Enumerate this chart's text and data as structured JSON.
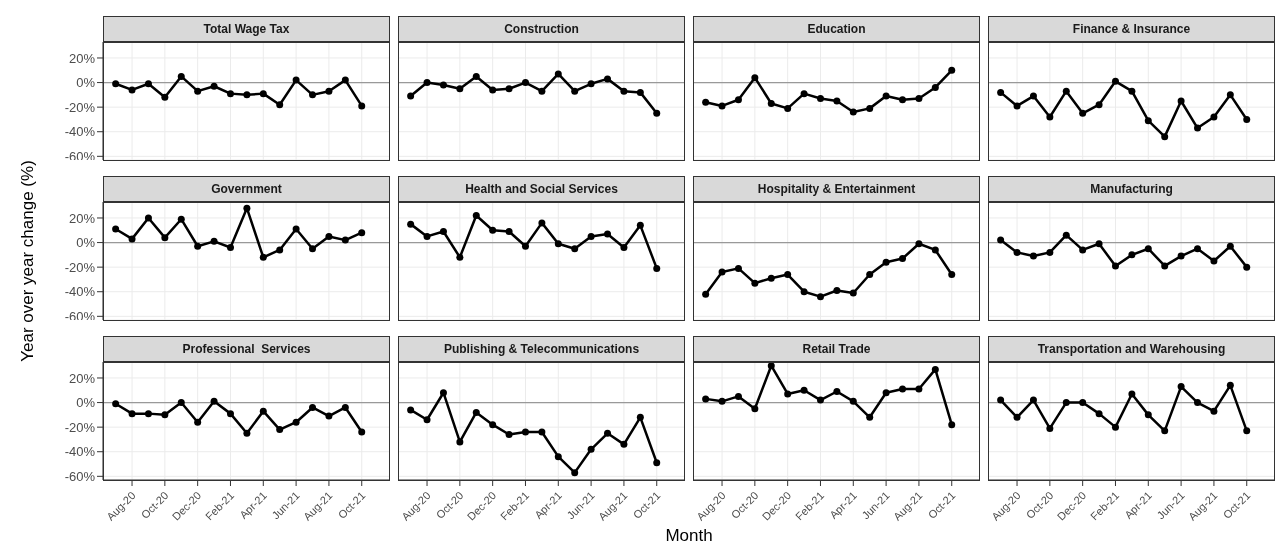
{
  "chart_data": [
    {
      "type": "line",
      "title": "Total Wage Tax",
      "x": [
        "2020-07",
        "2020-08",
        "2020-09",
        "2020-10",
        "2020-11",
        "2020-12",
        "2021-01",
        "2021-02",
        "2021-03",
        "2021-04",
        "2021-05",
        "2021-06",
        "2021-07",
        "2021-08",
        "2021-09",
        "2021-10"
      ],
      "series": [
        {
          "color": "#000000",
          "values": [
            -1,
            -6,
            -1,
            -12,
            5,
            -7,
            -3,
            -9,
            -10,
            -9,
            -18,
            2,
            -10,
            -7,
            2,
            -19
          ]
        }
      ],
      "xlim": [
        "2020-06-08",
        "2021-11-23"
      ],
      "xticks": [
        {
          "value": "2020-08",
          "label": null
        },
        {
          "value": "2020-10",
          "label": null
        },
        {
          "value": "2020-12",
          "label": null
        },
        {
          "value": "2021-02",
          "label": null
        },
        {
          "value": "2021-04",
          "label": null
        },
        {
          "value": "2021-06",
          "label": null
        },
        {
          "value": "2021-08",
          "label": null
        },
        {
          "value": "2021-10",
          "label": null
        }
      ],
      "ylim": [
        -63,
        33
      ],
      "yticks": [
        {
          "value": -60,
          "label": "-60%"
        },
        {
          "value": -40,
          "label": "-40%"
        },
        {
          "value": -20,
          "label": "-20%"
        },
        {
          "value": 0,
          "label": "0%"
        },
        {
          "value": 20,
          "label": "20%"
        }
      ],
      "ref_lines": [
        {
          "axis": "y",
          "value": 0,
          "color": "#999999"
        }
      ],
      "grid": true,
      "marker": "circle",
      "line_style": "solid",
      "tick_labels": "y"
    },
    {
      "type": "line",
      "title": "Construction",
      "x": [
        "2020-07",
        "2020-08",
        "2020-09",
        "2020-10",
        "2020-11",
        "2020-12",
        "2021-01",
        "2021-02",
        "2021-03",
        "2021-04",
        "2021-05",
        "2021-06",
        "2021-07",
        "2021-08",
        "2021-09",
        "2021-10"
      ],
      "series": [
        {
          "color": "#000000",
          "values": [
            -11,
            0,
            -2,
            -5,
            5,
            -6,
            -5,
            0,
            -7,
            7,
            -7,
            -1,
            3,
            -7,
            -8,
            -25
          ]
        }
      ],
      "xlim": [
        "2020-06-08",
        "2021-11-23"
      ],
      "xticks": [
        {
          "value": "2020-08",
          "label": null
        },
        {
          "value": "2020-10",
          "label": null
        },
        {
          "value": "2020-12",
          "label": null
        },
        {
          "value": "2021-02",
          "label": null
        },
        {
          "value": "2021-04",
          "label": null
        },
        {
          "value": "2021-06",
          "label": null
        },
        {
          "value": "2021-08",
          "label": null
        },
        {
          "value": "2021-10",
          "label": null
        }
      ],
      "ylim": [
        -63,
        33
      ],
      "yticks": [
        {
          "value": -60,
          "label": null
        },
        {
          "value": -40,
          "label": null
        },
        {
          "value": -20,
          "label": null
        },
        {
          "value": 0,
          "label": null
        },
        {
          "value": 20,
          "label": null
        }
      ],
      "ref_lines": [
        {
          "axis": "y",
          "value": 0,
          "color": "#999999"
        }
      ],
      "grid": true,
      "marker": "circle",
      "line_style": "solid",
      "tick_labels": false
    },
    {
      "type": "line",
      "title": "Education",
      "x": [
        "2020-07",
        "2020-08",
        "2020-09",
        "2020-10",
        "2020-11",
        "2020-12",
        "2021-01",
        "2021-02",
        "2021-03",
        "2021-04",
        "2021-05",
        "2021-06",
        "2021-07",
        "2021-08",
        "2021-09",
        "2021-10"
      ],
      "series": [
        {
          "color": "#000000",
          "values": [
            -16,
            -19,
            -14,
            4,
            -17,
            -21,
            -9,
            -13,
            -15,
            -24,
            -21,
            -11,
            -14,
            -13,
            -4,
            10
          ]
        }
      ],
      "xlim": [
        "2020-06-08",
        "2021-11-23"
      ],
      "xticks": [
        {
          "value": "2020-08",
          "label": null
        },
        {
          "value": "2020-10",
          "label": null
        },
        {
          "value": "2020-12",
          "label": null
        },
        {
          "value": "2021-02",
          "label": null
        },
        {
          "value": "2021-04",
          "label": null
        },
        {
          "value": "2021-06",
          "label": null
        },
        {
          "value": "2021-08",
          "label": null
        },
        {
          "value": "2021-10",
          "label": null
        }
      ],
      "ylim": [
        -63,
        33
      ],
      "yticks": [
        {
          "value": -60,
          "label": null
        },
        {
          "value": -40,
          "label": null
        },
        {
          "value": -20,
          "label": null
        },
        {
          "value": 0,
          "label": null
        },
        {
          "value": 20,
          "label": null
        }
      ],
      "ref_lines": [
        {
          "axis": "y",
          "value": 0,
          "color": "#999999"
        }
      ],
      "grid": true,
      "marker": "circle",
      "line_style": "solid",
      "tick_labels": false
    },
    {
      "type": "line",
      "title": "Finance & Insurance",
      "x": [
        "2020-07",
        "2020-08",
        "2020-09",
        "2020-10",
        "2020-11",
        "2020-12",
        "2021-01",
        "2021-02",
        "2021-03",
        "2021-04",
        "2021-05",
        "2021-06",
        "2021-07",
        "2021-08",
        "2021-09",
        "2021-10"
      ],
      "series": [
        {
          "color": "#000000",
          "values": [
            -8,
            -19,
            -11,
            -28,
            -7,
            -25,
            -18,
            1,
            -7,
            -31,
            -44,
            -15,
            -37,
            -28,
            -10,
            -30
          ]
        }
      ],
      "xlim": [
        "2020-06-08",
        "2021-11-23"
      ],
      "xticks": [
        {
          "value": "2020-08",
          "label": null
        },
        {
          "value": "2020-10",
          "label": null
        },
        {
          "value": "2020-12",
          "label": null
        },
        {
          "value": "2021-02",
          "label": null
        },
        {
          "value": "2021-04",
          "label": null
        },
        {
          "value": "2021-06",
          "label": null
        },
        {
          "value": "2021-08",
          "label": null
        },
        {
          "value": "2021-10",
          "label": null
        }
      ],
      "ylim": [
        -63,
        33
      ],
      "yticks": [
        {
          "value": -60,
          "label": null
        },
        {
          "value": -40,
          "label": null
        },
        {
          "value": -20,
          "label": null
        },
        {
          "value": 0,
          "label": null
        },
        {
          "value": 20,
          "label": null
        }
      ],
      "ref_lines": [
        {
          "axis": "y",
          "value": 0,
          "color": "#999999"
        }
      ],
      "grid": true,
      "marker": "circle",
      "line_style": "solid",
      "tick_labels": false
    },
    {
      "type": "line",
      "title": "Government",
      "ylabel": "Year over year change (%)",
      "x": [
        "2020-07",
        "2020-08",
        "2020-09",
        "2020-10",
        "2020-11",
        "2020-12",
        "2021-01",
        "2021-02",
        "2021-03",
        "2021-04",
        "2021-05",
        "2021-06",
        "2021-07",
        "2021-08",
        "2021-09",
        "2021-10"
      ],
      "series": [
        {
          "color": "#000000",
          "values": [
            11,
            3,
            20,
            4,
            19,
            -3,
            1,
            -4,
            28,
            -12,
            -6,
            11,
            -5,
            5,
            2,
            8
          ]
        }
      ],
      "xlim": [
        "2020-06-08",
        "2021-11-23"
      ],
      "xticks": [
        {
          "value": "2020-08",
          "label": null
        },
        {
          "value": "2020-10",
          "label": null
        },
        {
          "value": "2020-12",
          "label": null
        },
        {
          "value": "2021-02",
          "label": null
        },
        {
          "value": "2021-04",
          "label": null
        },
        {
          "value": "2021-06",
          "label": null
        },
        {
          "value": "2021-08",
          "label": null
        },
        {
          "value": "2021-10",
          "label": null
        }
      ],
      "ylim": [
        -63,
        33
      ],
      "yticks": [
        {
          "value": -60,
          "label": "-60%"
        },
        {
          "value": -40,
          "label": "-40%"
        },
        {
          "value": -20,
          "label": "-20%"
        },
        {
          "value": 0,
          "label": "0%"
        },
        {
          "value": 20,
          "label": "20%"
        }
      ],
      "ref_lines": [
        {
          "axis": "y",
          "value": 0,
          "color": "#999999"
        }
      ],
      "grid": true,
      "marker": "circle",
      "line_style": "solid",
      "tick_labels": "y"
    },
    {
      "type": "line",
      "title": "Health and Social Services",
      "x": [
        "2020-07",
        "2020-08",
        "2020-09",
        "2020-10",
        "2020-11",
        "2020-12",
        "2021-01",
        "2021-02",
        "2021-03",
        "2021-04",
        "2021-05",
        "2021-06",
        "2021-07",
        "2021-08",
        "2021-09",
        "2021-10"
      ],
      "series": [
        {
          "color": "#000000",
          "values": [
            15,
            5,
            9,
            -12,
            22,
            10,
            9,
            -3,
            16,
            -1,
            -5,
            5,
            7,
            -4,
            14,
            -21
          ]
        }
      ],
      "xlim": [
        "2020-06-08",
        "2021-11-23"
      ],
      "xticks": [
        {
          "value": "2020-08",
          "label": null
        },
        {
          "value": "2020-10",
          "label": null
        },
        {
          "value": "2020-12",
          "label": null
        },
        {
          "value": "2021-02",
          "label": null
        },
        {
          "value": "2021-04",
          "label": null
        },
        {
          "value": "2021-06",
          "label": null
        },
        {
          "value": "2021-08",
          "label": null
        },
        {
          "value": "2021-10",
          "label": null
        }
      ],
      "ylim": [
        -63,
        33
      ],
      "yticks": [
        {
          "value": -60,
          "label": null
        },
        {
          "value": -40,
          "label": null
        },
        {
          "value": -20,
          "label": null
        },
        {
          "value": 0,
          "label": null
        },
        {
          "value": 20,
          "label": null
        }
      ],
      "ref_lines": [
        {
          "axis": "y",
          "value": 0,
          "color": "#999999"
        }
      ],
      "grid": true,
      "marker": "circle",
      "line_style": "solid",
      "tick_labels": false
    },
    {
      "type": "line",
      "title": "Hospitality & Entertainment",
      "x": [
        "2020-07",
        "2020-08",
        "2020-09",
        "2020-10",
        "2020-11",
        "2020-12",
        "2021-01",
        "2021-02",
        "2021-03",
        "2021-04",
        "2021-05",
        "2021-06",
        "2021-07",
        "2021-08",
        "2021-09",
        "2021-10"
      ],
      "series": [
        {
          "color": "#000000",
          "values": [
            -42,
            -24,
            -21,
            -33,
            -29,
            -26,
            -40,
            -44,
            -39,
            -41,
            -26,
            -16,
            -13,
            -1,
            -6,
            -26
          ]
        }
      ],
      "xlim": [
        "2020-06-08",
        "2021-11-23"
      ],
      "xticks": [
        {
          "value": "2020-08",
          "label": null
        },
        {
          "value": "2020-10",
          "label": null
        },
        {
          "value": "2020-12",
          "label": null
        },
        {
          "value": "2021-02",
          "label": null
        },
        {
          "value": "2021-04",
          "label": null
        },
        {
          "value": "2021-06",
          "label": null
        },
        {
          "value": "2021-08",
          "label": null
        },
        {
          "value": "2021-10",
          "label": null
        }
      ],
      "ylim": [
        -63,
        33
      ],
      "yticks": [
        {
          "value": -60,
          "label": null
        },
        {
          "value": -40,
          "label": null
        },
        {
          "value": -20,
          "label": null
        },
        {
          "value": 0,
          "label": null
        },
        {
          "value": 20,
          "label": null
        }
      ],
      "ref_lines": [
        {
          "axis": "y",
          "value": 0,
          "color": "#999999"
        }
      ],
      "grid": true,
      "marker": "circle",
      "line_style": "solid",
      "tick_labels": false
    },
    {
      "type": "line",
      "title": "Manufacturing",
      "x": [
        "2020-07",
        "2020-08",
        "2020-09",
        "2020-10",
        "2020-11",
        "2020-12",
        "2021-01",
        "2021-02",
        "2021-03",
        "2021-04",
        "2021-05",
        "2021-06",
        "2021-07",
        "2021-08",
        "2021-09",
        "2021-10"
      ],
      "series": [
        {
          "color": "#000000",
          "values": [
            2,
            -8,
            -11,
            -8,
            6,
            -6,
            -1,
            -19,
            -10,
            -5,
            -19,
            -11,
            -5,
            -15,
            -3,
            -20
          ]
        }
      ],
      "xlim": [
        "2020-06-08",
        "2021-11-23"
      ],
      "xticks": [
        {
          "value": "2020-08",
          "label": null
        },
        {
          "value": "2020-10",
          "label": null
        },
        {
          "value": "2020-12",
          "label": null
        },
        {
          "value": "2021-02",
          "label": null
        },
        {
          "value": "2021-04",
          "label": null
        },
        {
          "value": "2021-06",
          "label": null
        },
        {
          "value": "2021-08",
          "label": null
        },
        {
          "value": "2021-10",
          "label": null
        }
      ],
      "ylim": [
        -63,
        33
      ],
      "yticks": [
        {
          "value": -60,
          "label": null
        },
        {
          "value": -40,
          "label": null
        },
        {
          "value": -20,
          "label": null
        },
        {
          "value": 0,
          "label": null
        },
        {
          "value": 20,
          "label": null
        }
      ],
      "ref_lines": [
        {
          "axis": "y",
          "value": 0,
          "color": "#999999"
        }
      ],
      "grid": true,
      "marker": "circle",
      "line_style": "solid",
      "tick_labels": false
    },
    {
      "type": "line",
      "title": "Professional  Services",
      "x": [
        "2020-07",
        "2020-08",
        "2020-09",
        "2020-10",
        "2020-11",
        "2020-12",
        "2021-01",
        "2021-02",
        "2021-03",
        "2021-04",
        "2021-05",
        "2021-06",
        "2021-07",
        "2021-08",
        "2021-09",
        "2021-10"
      ],
      "series": [
        {
          "color": "#000000",
          "values": [
            -1,
            -9,
            -9,
            -10,
            0,
            -16,
            1,
            -9,
            -25,
            -7,
            -22,
            -16,
            -4,
            -11,
            -4,
            -24
          ]
        }
      ],
      "xlim": [
        "2020-06-08",
        "2021-11-23"
      ],
      "xticks": [
        {
          "value": "2020-08",
          "label": "Aug-20"
        },
        {
          "value": "2020-10",
          "label": "Oct-20"
        },
        {
          "value": "2020-12",
          "label": "Dec-20"
        },
        {
          "value": "2021-02",
          "label": "Feb-21"
        },
        {
          "value": "2021-04",
          "label": "Apr-21"
        },
        {
          "value": "2021-06",
          "label": "Jun-21"
        },
        {
          "value": "2021-08",
          "label": "Aug-21"
        },
        {
          "value": "2021-10",
          "label": "Oct-21"
        }
      ],
      "ylim": [
        -63,
        33
      ],
      "yticks": [
        {
          "value": -60,
          "label": "-60%"
        },
        {
          "value": -40,
          "label": "-40%"
        },
        {
          "value": -20,
          "label": "-20%"
        },
        {
          "value": 0,
          "label": "0%"
        },
        {
          "value": 20,
          "label": "20%"
        }
      ],
      "ref_lines": [
        {
          "axis": "y",
          "value": 0,
          "color": "#999999"
        }
      ],
      "grid": true,
      "marker": "circle",
      "line_style": "solid"
    },
    {
      "type": "line",
      "title": "Publishing & Telecommunications",
      "xlabel": "Month",
      "x": [
        "2020-07",
        "2020-08",
        "2020-09",
        "2020-10",
        "2020-11",
        "2020-12",
        "2021-01",
        "2021-02",
        "2021-03",
        "2021-04",
        "2021-05",
        "2021-06",
        "2021-07",
        "2021-08",
        "2021-09",
        "2021-10"
      ],
      "series": [
        {
          "color": "#000000",
          "values": [
            -6,
            -14,
            8,
            -32,
            -8,
            -18,
            -26,
            -24,
            -24,
            -44,
            -57,
            -38,
            -25,
            -34,
            -12,
            -49
          ]
        }
      ],
      "xlim": [
        "2020-06-08",
        "2021-11-23"
      ],
      "xticks": [
        {
          "value": "2020-08",
          "label": "Aug-20"
        },
        {
          "value": "2020-10",
          "label": "Oct-20"
        },
        {
          "value": "2020-12",
          "label": "Dec-20"
        },
        {
          "value": "2021-02",
          "label": "Feb-21"
        },
        {
          "value": "2021-04",
          "label": "Apr-21"
        },
        {
          "value": "2021-06",
          "label": "Jun-21"
        },
        {
          "value": "2021-08",
          "label": "Aug-21"
        },
        {
          "value": "2021-10",
          "label": "Oct-21"
        }
      ],
      "ylim": [
        -63,
        33
      ],
      "yticks": [
        {
          "value": -60,
          "label": null
        },
        {
          "value": -40,
          "label": null
        },
        {
          "value": -20,
          "label": null
        },
        {
          "value": 0,
          "label": null
        },
        {
          "value": 20,
          "label": null
        }
      ],
      "ref_lines": [
        {
          "axis": "y",
          "value": 0,
          "color": "#999999"
        }
      ],
      "grid": true,
      "marker": "circle",
      "line_style": "solid",
      "tick_labels": "x"
    },
    {
      "type": "line",
      "title": "Retail Trade",
      "x": [
        "2020-07",
        "2020-08",
        "2020-09",
        "2020-10",
        "2020-11",
        "2020-12",
        "2021-01",
        "2021-02",
        "2021-03",
        "2021-04",
        "2021-05",
        "2021-06",
        "2021-07",
        "2021-08",
        "2021-09",
        "2021-10"
      ],
      "series": [
        {
          "color": "#000000",
          "values": [
            3,
            1,
            5,
            -5,
            30,
            7,
            10,
            2,
            9,
            1,
            -12,
            8,
            11,
            11,
            27,
            -18
          ]
        }
      ],
      "xlim": [
        "2020-06-08",
        "2021-11-23"
      ],
      "xticks": [
        {
          "value": "2020-08",
          "label": "Aug-20"
        },
        {
          "value": "2020-10",
          "label": "Oct-20"
        },
        {
          "value": "2020-12",
          "label": "Dec-20"
        },
        {
          "value": "2021-02",
          "label": "Feb-21"
        },
        {
          "value": "2021-04",
          "label": "Apr-21"
        },
        {
          "value": "2021-06",
          "label": "Jun-21"
        },
        {
          "value": "2021-08",
          "label": "Aug-21"
        },
        {
          "value": "2021-10",
          "label": "Oct-21"
        }
      ],
      "ylim": [
        -63,
        33
      ],
      "yticks": [
        {
          "value": -60,
          "label": null
        },
        {
          "value": -40,
          "label": null
        },
        {
          "value": -20,
          "label": null
        },
        {
          "value": 0,
          "label": null
        },
        {
          "value": 20,
          "label": null
        }
      ],
      "ref_lines": [
        {
          "axis": "y",
          "value": 0,
          "color": "#999999"
        }
      ],
      "grid": true,
      "marker": "circle",
      "line_style": "solid",
      "tick_labels": "x"
    },
    {
      "type": "line",
      "title": "Transportation and Warehousing",
      "x": [
        "2020-07",
        "2020-08",
        "2020-09",
        "2020-10",
        "2020-11",
        "2020-12",
        "2021-01",
        "2021-02",
        "2021-03",
        "2021-04",
        "2021-05",
        "2021-06",
        "2021-07",
        "2021-08",
        "2021-09",
        "2021-10"
      ],
      "series": [
        {
          "color": "#000000",
          "values": [
            2,
            -12,
            2,
            -21,
            0,
            0,
            -9,
            -20,
            7,
            -10,
            -23,
            13,
            0,
            -7,
            14,
            -23
          ]
        }
      ],
      "xlim": [
        "2020-06-08",
        "2021-11-23"
      ],
      "xticks": [
        {
          "value": "2020-08",
          "label": "Aug-20"
        },
        {
          "value": "2020-10",
          "label": "Oct-20"
        },
        {
          "value": "2020-12",
          "label": "Dec-20"
        },
        {
          "value": "2021-02",
          "label": "Feb-21"
        },
        {
          "value": "2021-04",
          "label": "Apr-21"
        },
        {
          "value": "2021-06",
          "label": "Jun-21"
        },
        {
          "value": "2021-08",
          "label": "Aug-21"
        },
        {
          "value": "2021-10",
          "label": "Oct-21"
        }
      ],
      "ylim": [
        -63,
        33
      ],
      "yticks": [
        {
          "value": -60,
          "label": null
        },
        {
          "value": -40,
          "label": null
        },
        {
          "value": -20,
          "label": null
        },
        {
          "value": 0,
          "label": null
        },
        {
          "value": 20,
          "label": null
        }
      ],
      "ref_lines": [
        {
          "axis": "y",
          "value": 0,
          "color": "#999999"
        }
      ],
      "grid": true,
      "marker": "circle",
      "line_style": "solid",
      "tick_labels": "x"
    }
  ]
}
